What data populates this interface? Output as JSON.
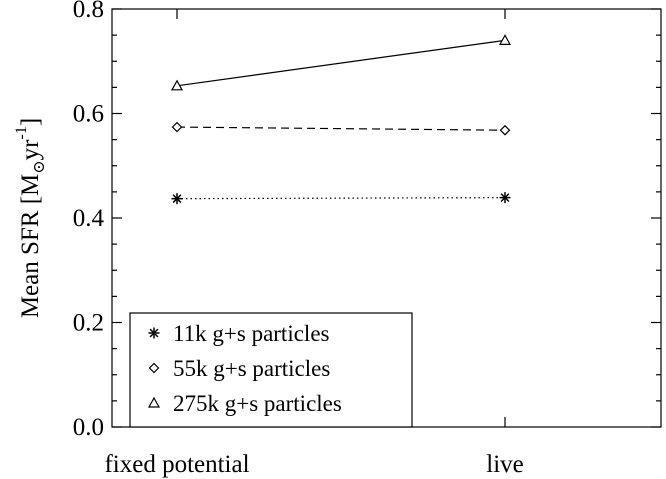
{
  "chart_data": {
    "type": "line",
    "title": "",
    "xlabel": "",
    "ylabel": "Mean SFR [M⊙yr⁻¹]",
    "ylabel_parts": {
      "prefix": "Mean SFR [M",
      "sub": "⊙",
      "mid": "yr",
      "sup": "-1",
      "suffix": "]"
    },
    "categories": [
      "fixed potential",
      "live"
    ],
    "ylim": [
      0.0,
      0.8
    ],
    "yticks": [
      "0.0",
      "0.2",
      "0.4",
      "0.6",
      "0.8"
    ],
    "ytick_values": [
      0.0,
      0.2,
      0.4,
      0.6,
      0.8
    ],
    "minor_y_step": 0.05,
    "grid": false,
    "legend_position": "bottom-left",
    "series": [
      {
        "name": "11k g+s particles",
        "values": [
          0.437,
          0.439
        ],
        "marker": "asterisk",
        "linestyle": "dotted"
      },
      {
        "name": "55k g+s particles",
        "values": [
          0.574,
          0.568
        ],
        "marker": "diamond",
        "linestyle": "dashed"
      },
      {
        "name": "275k g+s particles",
        "values": [
          0.653,
          0.74
        ],
        "marker": "triangle",
        "linestyle": "solid"
      }
    ]
  }
}
